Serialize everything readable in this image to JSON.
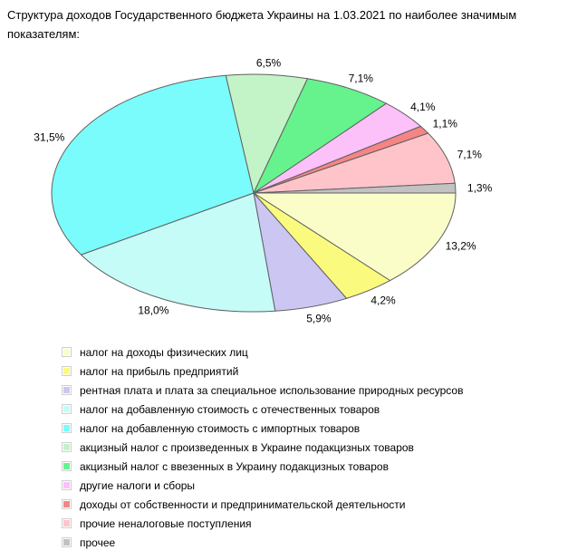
{
  "chart_data": {
    "type": "pie",
    "title": "Структура доходов Государственного бюджета Украины на 1.03.2021 по наиболее значимым показателям:",
    "start_angle": "east",
    "direction": "clockwise",
    "outline_color": "#606060",
    "legend_position": "bottom-left",
    "slices": [
      {
        "label": "налог на доходы физических лиц",
        "value": 13.2,
        "value_label": "13,2%",
        "color": "#FBFDC9"
      },
      {
        "label": "налог на прибыль предприятий",
        "value": 4.2,
        "value_label": "4,2%",
        "color": "#FAFA7E"
      },
      {
        "label": "рентная плата и плата за специальное использование природных ресурсов",
        "value": 5.9,
        "value_label": "5,9%",
        "color": "#CCC6F3"
      },
      {
        "label": "налог на добавленную стоимость с отечественных товаров",
        "value": 18.0,
        "value_label": "18,0%",
        "color": "#C6FCF8"
      },
      {
        "label": "налог на добавленную стоимость с импортных товаров",
        "value": 31.5,
        "value_label": "31,5%",
        "color": "#7AFCFC"
      },
      {
        "label": "акцизный налог с произведенных в Украине подакцизных товаров",
        "value": 6.5,
        "value_label": "6,5%",
        "color": "#C2F4C8"
      },
      {
        "label": "акцизный налог с ввезенных в Украину подакцизных товаров",
        "value": 7.1,
        "value_label": "7,1%",
        "color": "#66F28C"
      },
      {
        "label": "другие налоги и сборы",
        "value": 4.1,
        "value_label": "4,1%",
        "color": "#FBC1F8"
      },
      {
        "label": "доходы от собственности и предпринимательской деятельности",
        "value": 1.1,
        "value_label": "1,1%",
        "color": "#F58585"
      },
      {
        "label": "прочие неналоговые поступления",
        "value": 7.1,
        "value_label": "7,1%",
        "color": "#FFC4CA"
      },
      {
        "label": "прочее",
        "value": 1.3,
        "value_label": "1,3%",
        "color": "#C2C2C2"
      }
    ]
  }
}
